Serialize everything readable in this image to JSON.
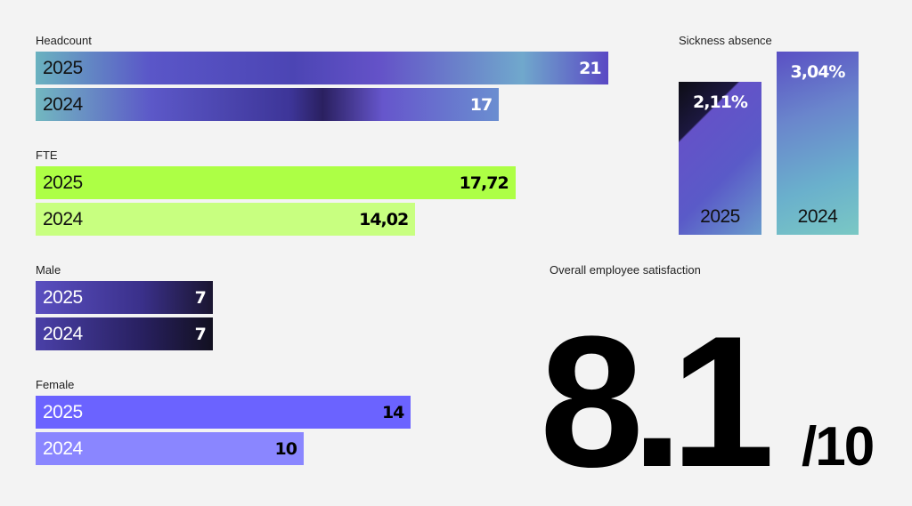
{
  "chart_data": [
    {
      "type": "bar",
      "title": "Headcount",
      "categories": [
        "2025",
        "2024"
      ],
      "values": [
        21,
        17
      ],
      "labels": [
        "21",
        "17"
      ]
    },
    {
      "type": "bar",
      "title": "FTE",
      "categories": [
        "2025",
        "2024"
      ],
      "values": [
        17.72,
        14.02
      ],
      "labels": [
        "17,72",
        "14,02"
      ]
    },
    {
      "type": "bar",
      "title": "Male",
      "categories": [
        "2025",
        "2024"
      ],
      "values": [
        7,
        7
      ],
      "labels": [
        "7",
        "7"
      ]
    },
    {
      "type": "bar",
      "title": "Female",
      "categories": [
        "2025",
        "2024"
      ],
      "values": [
        14,
        10
      ],
      "labels": [
        "14",
        "10"
      ]
    },
    {
      "type": "bar",
      "title": "Sickness absence",
      "categories": [
        "2025",
        "2024"
      ],
      "values": [
        2.11,
        3.04
      ],
      "labels": [
        "2,11%",
        "3,04%"
      ]
    }
  ],
  "satisfaction": {
    "title": "Overall employee satisfaction",
    "score": "8.1",
    "scale": "/10",
    "value": 8.1,
    "max": 10
  }
}
